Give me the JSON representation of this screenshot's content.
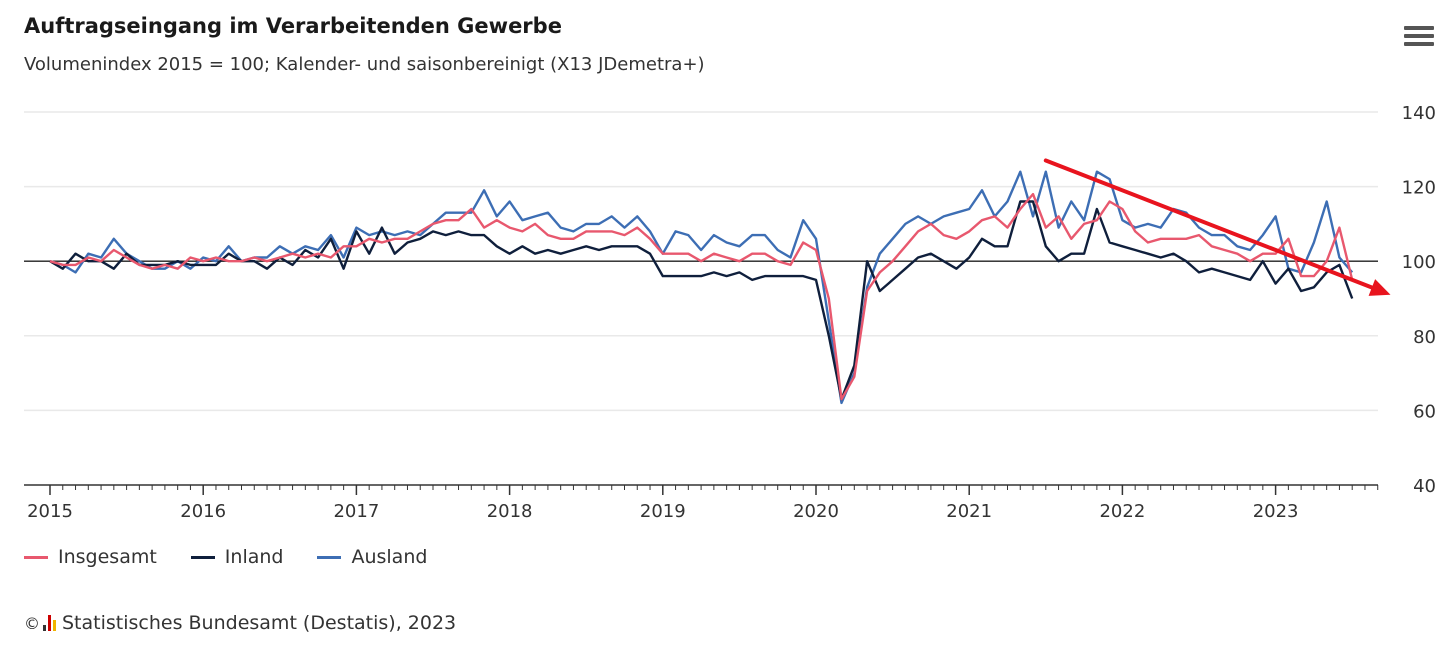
{
  "header": {
    "title": "Auftragseingang im Verarbeitenden Gewerbe",
    "subtitle": "Volumenindex 2015 = 100; Kalender- und saisonbereinigt (X13 JDemetra+)"
  },
  "menu": {
    "icon": "hamburger-menu-icon"
  },
  "credits": {
    "copyright_symbol": "©",
    "logo_icon": "destatis-logo-icon",
    "text": "Statistisches Bundesamt (Destatis), 2023"
  },
  "chart_data": {
    "type": "line",
    "title": "Auftragseingang im Verarbeitenden Gewerbe",
    "subtitle": "Volumenindex 2015 = 100; Kalender- und saisonbereinigt (X13 JDemetra+)",
    "xlabel": "",
    "ylabel": "",
    "x_start": "2015-01",
    "x_end": "2023-07",
    "x_ticks": [
      "2015",
      "2016",
      "2017",
      "2018",
      "2019",
      "2020",
      "2021",
      "2022",
      "2023"
    ],
    "ylim": [
      40,
      140
    ],
    "y_ticks": [
      40,
      60,
      80,
      100,
      120,
      140
    ],
    "y_axis_side": "right",
    "reference_line": 100,
    "grid": true,
    "legend_position": "bottom-left",
    "series": [
      {
        "name": "Insgesamt",
        "color": "#e8586e",
        "values": [
          100,
          99,
          99,
          101,
          100,
          103,
          101,
          99,
          98,
          99,
          98,
          101,
          100,
          101,
          100,
          100,
          101,
          100,
          101,
          102,
          101,
          102,
          101,
          104,
          104,
          106,
          105,
          106,
          106,
          108,
          110,
          111,
          111,
          114,
          109,
          111,
          109,
          108,
          110,
          107,
          106,
          106,
          108,
          108,
          108,
          107,
          109,
          106,
          102,
          102,
          102,
          100,
          102,
          101,
          100,
          102,
          102,
          100,
          99,
          105,
          103,
          90,
          63,
          69,
          92,
          97,
          100,
          104,
          108,
          110,
          107,
          106,
          108,
          111,
          112,
          109,
          114,
          118,
          109,
          112,
          106,
          110,
          111,
          116,
          114,
          108,
          105,
          106,
          106,
          106,
          107,
          104,
          103,
          102,
          100,
          102,
          102,
          106,
          96,
          96,
          100,
          109,
          95
        ]
      },
      {
        "name": "Inland",
        "color": "#0f1f3c",
        "values": [
          100,
          98,
          102,
          100,
          100,
          98,
          102,
          99,
          99,
          99,
          100,
          99,
          99,
          99,
          102,
          100,
          100,
          98,
          101,
          99,
          103,
          101,
          106,
          98,
          108,
          102,
          109,
          102,
          105,
          106,
          108,
          107,
          108,
          107,
          107,
          104,
          102,
          104,
          102,
          103,
          102,
          103,
          104,
          103,
          104,
          104,
          104,
          102,
          96,
          96,
          96,
          96,
          97,
          96,
          97,
          95,
          96,
          96,
          96,
          96,
          95,
          80,
          63,
          72,
          100,
          92,
          95,
          98,
          101,
          102,
          100,
          98,
          101,
          106,
          104,
          104,
          116,
          116,
          104,
          100,
          102,
          102,
          114,
          105,
          104,
          103,
          102,
          101,
          102,
          100,
          97,
          98,
          97,
          96,
          95,
          100,
          94,
          98,
          92,
          93,
          97,
          99,
          90
        ]
      },
      {
        "name": "Ausland",
        "color": "#3d6eb4",
        "values": [
          100,
          99,
          97,
          102,
          101,
          106,
          102,
          100,
          98,
          98,
          100,
          98,
          101,
          100,
          104,
          100,
          101,
          101,
          104,
          102,
          104,
          103,
          107,
          101,
          109,
          107,
          108,
          107,
          108,
          107,
          110,
          113,
          113,
          113,
          119,
          112,
          116,
          111,
          112,
          113,
          109,
          108,
          110,
          110,
          112,
          109,
          112,
          108,
          102,
          108,
          107,
          103,
          107,
          105,
          104,
          107,
          107,
          103,
          101,
          111,
          106,
          84,
          62,
          70,
          93,
          102,
          106,
          110,
          112,
          110,
          112,
          113,
          114,
          119,
          112,
          116,
          124,
          112,
          124,
          109,
          116,
          111,
          124,
          122,
          111,
          109,
          110,
          109,
          114,
          113,
          109,
          107,
          107,
          104,
          103,
          107,
          112,
          98,
          97,
          105,
          116,
          101,
          97
        ]
      }
    ],
    "annotation": {
      "type": "trend-arrow",
      "color": "#e8141e",
      "from": {
        "x": "2021-07",
        "y": 127
      },
      "to": {
        "x": "2023-10",
        "y": 91
      }
    }
  }
}
